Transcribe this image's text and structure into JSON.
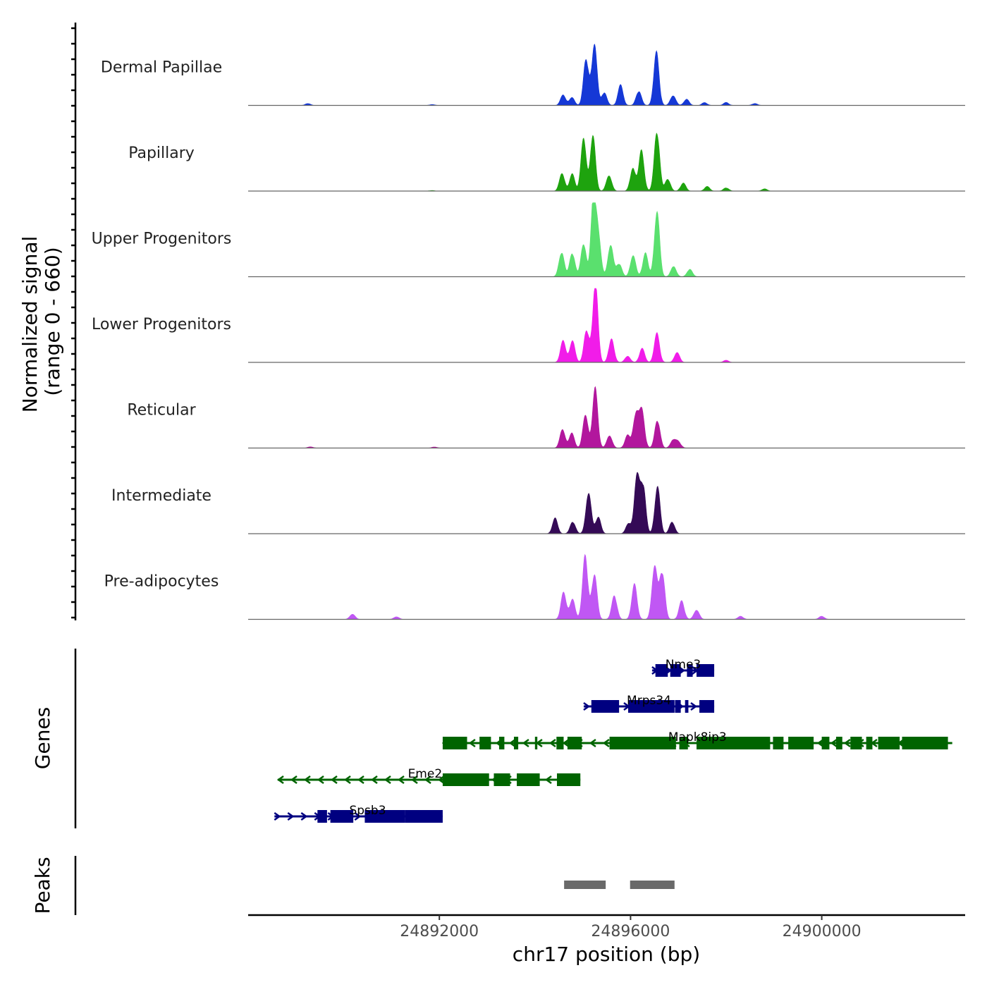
{
  "chart_data": {
    "type": "area",
    "title": "",
    "chromosome": "chr17",
    "xlabel": "chr17 position (bp)",
    "ylabel_line1": "Normalized signal",
    "ylabel_line2": "(range 0 - 660)",
    "signal_range": [
      0,
      660
    ],
    "xlim": [
      24888000,
      24903000
    ],
    "x_ticks": [
      24892000,
      24896000,
      24900000
    ],
    "x_tick_labels": [
      "24892000",
      "24896000",
      "24900000"
    ],
    "series": [
      {
        "name": "Dermal Papillae",
        "color": "#1538D6",
        "peaks": [
          [
            24891850,
            8
          ],
          [
            24894590,
            95
          ],
          [
            24894770,
            70
          ],
          [
            24895070,
            430
          ],
          [
            24895240,
            540
          ],
          [
            24895450,
            120
          ],
          [
            24895790,
            170
          ],
          [
            24896170,
            130
          ],
          [
            24896540,
            480
          ],
          [
            24896890,
            95
          ],
          [
            24897170,
            55
          ],
          [
            24897550,
            25
          ],
          [
            24898000,
            25
          ],
          [
            24898600,
            18
          ],
          [
            24889250,
            18
          ]
        ]
      },
      {
        "name": "Papillary",
        "color": "#1EA30E",
        "peaks": [
          [
            24891850,
            5
          ],
          [
            24894570,
            160
          ],
          [
            24894780,
            150
          ],
          [
            24895020,
            470
          ],
          [
            24895210,
            480
          ],
          [
            24895550,
            150
          ],
          [
            24896050,
            220
          ],
          [
            24896230,
            340
          ],
          [
            24896550,
            560
          ],
          [
            24896780,
            110
          ],
          [
            24897100,
            70
          ],
          [
            24897600,
            40
          ],
          [
            24898000,
            30
          ],
          [
            24898800,
            20
          ]
        ]
      },
      {
        "name": "Upper Progenitors",
        "color": "#5AE06E",
        "peaks": [
          [
            24894560,
            230
          ],
          [
            24894780,
            220
          ],
          [
            24895020,
            310
          ],
          [
            24895230,
            760
          ],
          [
            24895330,
            280
          ],
          [
            24895580,
            300
          ],
          [
            24895760,
            120
          ],
          [
            24896050,
            200
          ],
          [
            24896310,
            210
          ],
          [
            24896550,
            580
          ],
          [
            24896900,
            100
          ],
          [
            24897240,
            70
          ]
        ]
      },
      {
        "name": "Lower Progenitors",
        "color": "#F11CE9",
        "peaks": [
          [
            24894590,
            200
          ],
          [
            24894780,
            190
          ],
          [
            24895080,
            300
          ],
          [
            24895260,
            700
          ],
          [
            24895600,
            220
          ],
          [
            24895940,
            60
          ],
          [
            24896240,
            120
          ],
          [
            24896550,
            260
          ],
          [
            24896970,
            90
          ],
          [
            24898000,
            18
          ]
        ]
      },
      {
        "name": "Reticular",
        "color": "#B2179D",
        "peaks": [
          [
            24894580,
            170
          ],
          [
            24894770,
            130
          ],
          [
            24895060,
            310
          ],
          [
            24895260,
            510
          ],
          [
            24895560,
            120
          ],
          [
            24895940,
            120
          ],
          [
            24896110,
            320
          ],
          [
            24896240,
            310
          ],
          [
            24896560,
            260
          ],
          [
            24896890,
            75
          ],
          [
            24897000,
            55
          ],
          [
            24891900,
            10
          ],
          [
            24889300,
            12
          ]
        ]
      },
      {
        "name": "Intermediate",
        "color": "#340A56",
        "peaks": [
          [
            24894420,
            130
          ],
          [
            24894790,
            110
          ],
          [
            24895120,
            390
          ],
          [
            24895320,
            150
          ],
          [
            24895960,
            95
          ],
          [
            24896130,
            480
          ],
          [
            24896260,
            450
          ],
          [
            24896560,
            420
          ],
          [
            24896870,
            110
          ]
        ]
      },
      {
        "name": "Pre-adipocytes",
        "color": "#C057F4",
        "peaks": [
          [
            24890180,
            50
          ],
          [
            24894600,
            250
          ],
          [
            24894780,
            180
          ],
          [
            24895050,
            600
          ],
          [
            24895240,
            410
          ],
          [
            24895660,
            220
          ],
          [
            24896080,
            320
          ],
          [
            24896500,
            490
          ],
          [
            24896660,
            440
          ],
          [
            24897070,
            160
          ],
          [
            24897380,
            90
          ],
          [
            24898300,
            30
          ],
          [
            24900000,
            30
          ],
          [
            24891100,
            25
          ]
        ]
      }
    ],
    "genes": [
      {
        "name": "Nme3",
        "strand": "+",
        "row": 0,
        "color": "#000080",
        "start": 24896450,
        "end": 24897750,
        "exons": [
          [
            24896520,
            24896780
          ],
          [
            24896830,
            24897050
          ],
          [
            24897180,
            24897300
          ],
          [
            24897380,
            24897750
          ]
        ]
      },
      {
        "name": "Mrps34",
        "strand": "+",
        "row": 1,
        "color": "#000080",
        "start": 24895020,
        "end": 24897750,
        "exons": [
          [
            24895180,
            24895760
          ],
          [
            24895950,
            24896920
          ],
          [
            24896930,
            24897050
          ],
          [
            24897140,
            24897210
          ],
          [
            24897440,
            24897750
          ]
        ]
      },
      {
        "name": "Mapk8ip3",
        "strand": "-",
        "row": 2,
        "color": "#006400",
        "start": 24892070,
        "end": 24902730,
        "exons": [
          [
            24892070,
            24892580
          ],
          [
            24892840,
            24893080
          ],
          [
            24893250,
            24893360
          ],
          [
            24893560,
            24893650
          ],
          [
            24894000,
            24894050
          ],
          [
            24894450,
            24894600
          ],
          [
            24894680,
            24894980
          ],
          [
            24895560,
            24896950
          ],
          [
            24897020,
            24897200
          ],
          [
            24897380,
            24898920
          ],
          [
            24898980,
            24899200
          ],
          [
            24899300,
            24899830
          ],
          [
            24900000,
            24900160
          ],
          [
            24900300,
            24900430
          ],
          [
            24900600,
            24900840
          ],
          [
            24900930,
            24901060
          ],
          [
            24901180,
            24901630
          ],
          [
            24901680,
            24902640
          ]
        ]
      },
      {
        "name": "Eme2",
        "strand": "-",
        "row": 3,
        "color": "#006400",
        "start": 24888620,
        "end": 24894950,
        "exons": [
          [
            24892070,
            24893040
          ],
          [
            24893140,
            24893480
          ],
          [
            24893620,
            24894100
          ],
          [
            24894460,
            24894950
          ]
        ]
      },
      {
        "name": "Spsb3",
        "strand": "+",
        "row": 4,
        "color": "#000080",
        "start": 24888550,
        "end": 24892070,
        "exons": [
          [
            24889450,
            24889650
          ],
          [
            24889720,
            24890200
          ],
          [
            24890440,
            24891280
          ],
          [
            24891280,
            24892070
          ]
        ]
      }
    ],
    "peaks_track": [
      [
        24894610,
        24895480
      ],
      [
        24895990,
        24896920
      ]
    ],
    "peak_color": "#696969",
    "panel_titles": {
      "genes": "Genes",
      "peaks": "Peaks"
    }
  }
}
